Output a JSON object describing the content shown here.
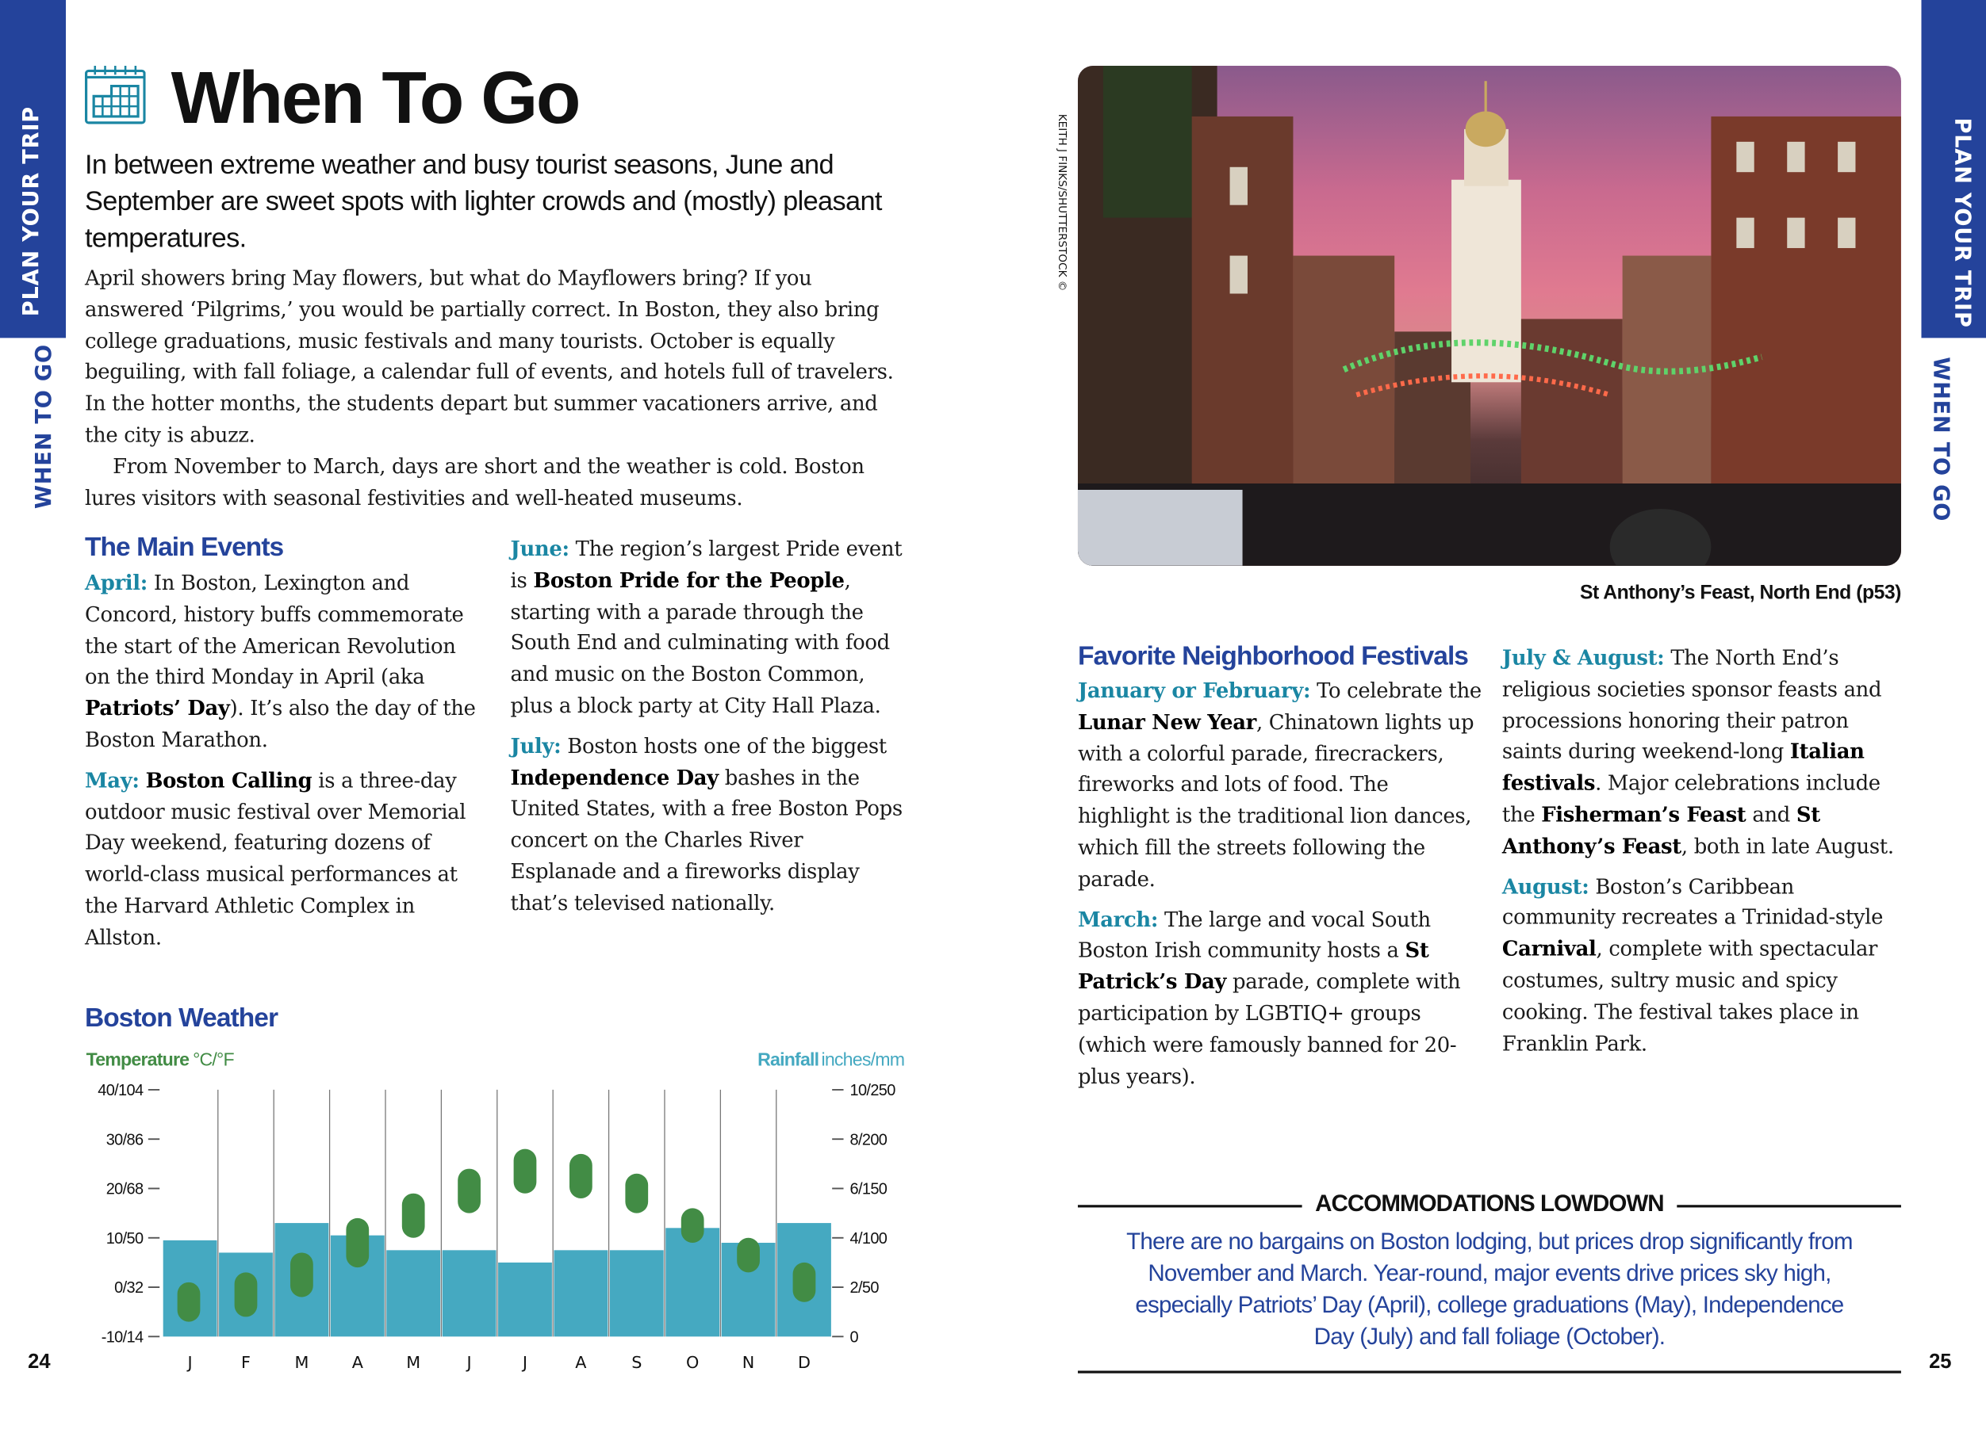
{
  "side_tabs": {
    "left_section": "PLAN YOUR TRIP",
    "left_chapter": "WHEN TO GO",
    "right_section": "PLAN YOUR TRIP",
    "right_chapter": "WHEN TO GO"
  },
  "colors": {
    "tab_blue": "#24439b",
    "heading_blue": "#24439b",
    "label_teal": "#1a86a3",
    "rain_bar": "#45a9c1",
    "temp_pill": "#428c45"
  },
  "title": "When To Go",
  "title_icon": "calendar-icon",
  "subtitle": "In between extreme weather and busy tourist seasons, June and September are sweet spots with lighter crowds and (mostly) pleasant temperatures.",
  "intro": [
    [
      {
        "t": "April showers bring May flowers, but what do Mayflowers bring? If you answered ‘Pilgrims,’ you would be partially correct. In Boston, they also bring college graduations, music festivals and many tourists. October is equally beguiling, with fall foliage, a calendar full of events, and hotels full of travelers. In the hotter months, the students depart but summer vacationers arrive, and the city is abuzz."
      }
    ],
    [
      {
        "t": "From November to March, days are short and the weather is cold. Boston lures visitors with seasonal festivities and well-heated museums."
      }
    ]
  ],
  "main_events": {
    "heading": "The Main Events",
    "col1": [
      [
        {
          "t": "April:",
          "s": "lbl"
        },
        {
          "t": " In Boston, Lexington and Concord, history buffs commemorate the start of the American Revolution on the third Monday in April (aka "
        },
        {
          "t": "Patriots’ Day",
          "s": "b"
        },
        {
          "t": "). It’s also the day of the Boston Marathon."
        }
      ],
      [
        {
          "t": "May:",
          "s": "lbl"
        },
        {
          "t": " "
        },
        {
          "t": "Boston Calling",
          "s": "b"
        },
        {
          "t": " is a three-day outdoor music festival over Memorial Day weekend, featuring dozens of world-class musical performances at the Harvard Athletic Complex in Allston."
        }
      ]
    ],
    "col2": [
      [
        {
          "t": "June:",
          "s": "lbl"
        },
        {
          "t": " The region’s largest Pride event is "
        },
        {
          "t": "Boston Pride for the People",
          "s": "b"
        },
        {
          "t": ", starting with a parade through the South End and culminating with food and music on the Boston Common, plus a block party at City Hall Plaza."
        }
      ],
      [
        {
          "t": "July:",
          "s": "lbl"
        },
        {
          "t": " Boston hosts one of the biggest "
        },
        {
          "t": "Independence Day",
          "s": "b"
        },
        {
          "t": " bashes in the United States, with a free Boston Pops concert on the Charles River Esplanade and a fireworks display that’s televised nationally."
        }
      ]
    ]
  },
  "weather": {
    "heading": "Boston Weather"
  },
  "chart_data": {
    "type": "bar+range",
    "categories": [
      "J",
      "F",
      "M",
      "A",
      "M",
      "J",
      "J",
      "A",
      "S",
      "O",
      "N",
      "D"
    ],
    "left_axis": {
      "label_bold": "Temperature",
      "label_unit": "°C/°F",
      "ticks": [
        "-10/14",
        "0/32",
        "10/50",
        "20/68",
        "30/86",
        "40/104"
      ],
      "range_c": [
        -10,
        40
      ]
    },
    "right_axis": {
      "label_bold": "Rainfall",
      "label_unit": "inches/mm",
      "ticks": [
        "0",
        "2/50",
        "4/100",
        "6/150",
        "8/200",
        "10/250"
      ],
      "range_in": [
        0,
        10
      ]
    },
    "series": [
      {
        "name": "Rainfall",
        "kind": "bar",
        "unit": "inches",
        "values": [
          3.9,
          3.4,
          4.6,
          4.1,
          3.5,
          3.5,
          3.0,
          3.5,
          3.5,
          4.4,
          3.8,
          4.6
        ]
      },
      {
        "name": "Temperature",
        "kind": "range",
        "unit": "°C",
        "low": [
          -7,
          -6,
          -2,
          4,
          10,
          15,
          19,
          18,
          15,
          9,
          3,
          -3
        ],
        "high": [
          1,
          3,
          7,
          14,
          19,
          24,
          28,
          27,
          23,
          16,
          10,
          5
        ]
      }
    ],
    "grid": "vertical separators"
  },
  "photo": {
    "credit": "KEITH J FINKS/SHUTTERSTOCK ©",
    "caption": "St Anthony’s Feast, North End (p53)"
  },
  "festivals": {
    "heading": "Favorite Neighborhood Festivals",
    "col1": [
      [
        {
          "t": "January or February:",
          "s": "lbl"
        },
        {
          "t": " To celebrate the "
        },
        {
          "t": "Lunar New Year",
          "s": "b"
        },
        {
          "t": ", Chinatown lights up with a colorful parade, firecrackers, fireworks and lots of food. The highlight is the traditional lion dances, which fill the streets following the parade."
        }
      ],
      [
        {
          "t": "March:",
          "s": "lbl"
        },
        {
          "t": " The large and vocal South Boston Irish community hosts a "
        },
        {
          "t": "St Patrick’s Day",
          "s": "b"
        },
        {
          "t": " parade, complete with participation by LGBTIQ+ groups (which were famously banned for 20-plus years)."
        }
      ]
    ],
    "col2": [
      [
        {
          "t": "July & August:",
          "s": "lbl"
        },
        {
          "t": " The North End’s religious societies sponsor feasts and processions honoring their patron saints during weekend-long "
        },
        {
          "t": "Italian festivals",
          "s": "b"
        },
        {
          "t": ". Major celebrations include the "
        },
        {
          "t": "Fisherman’s Feast",
          "s": "b"
        },
        {
          "t": " and "
        },
        {
          "t": "St Anthony’s Feast",
          "s": "b"
        },
        {
          "t": ", both in late August."
        }
      ],
      [
        {
          "t": "August:",
          "s": "lbl"
        },
        {
          "t": " Boston’s Caribbean community recreates a Trinidad-style "
        },
        {
          "t": "Carnival",
          "s": "b"
        },
        {
          "t": ", complete with spectacular costumes, sultry music and spicy cooking. The festival takes place in Franklin Park."
        }
      ]
    ]
  },
  "accommodations": {
    "heading": "ACCOMMODATIONS LOWDOWN",
    "text": "There are no bargains on Boston lodging, but prices drop significantly from November and March. Year-round, major events drive prices sky high, especially Patriots’ Day (April), college graduations (May), Independence Day (July) and fall foliage (October)."
  },
  "page_numbers": {
    "left": "24",
    "right": "25"
  }
}
